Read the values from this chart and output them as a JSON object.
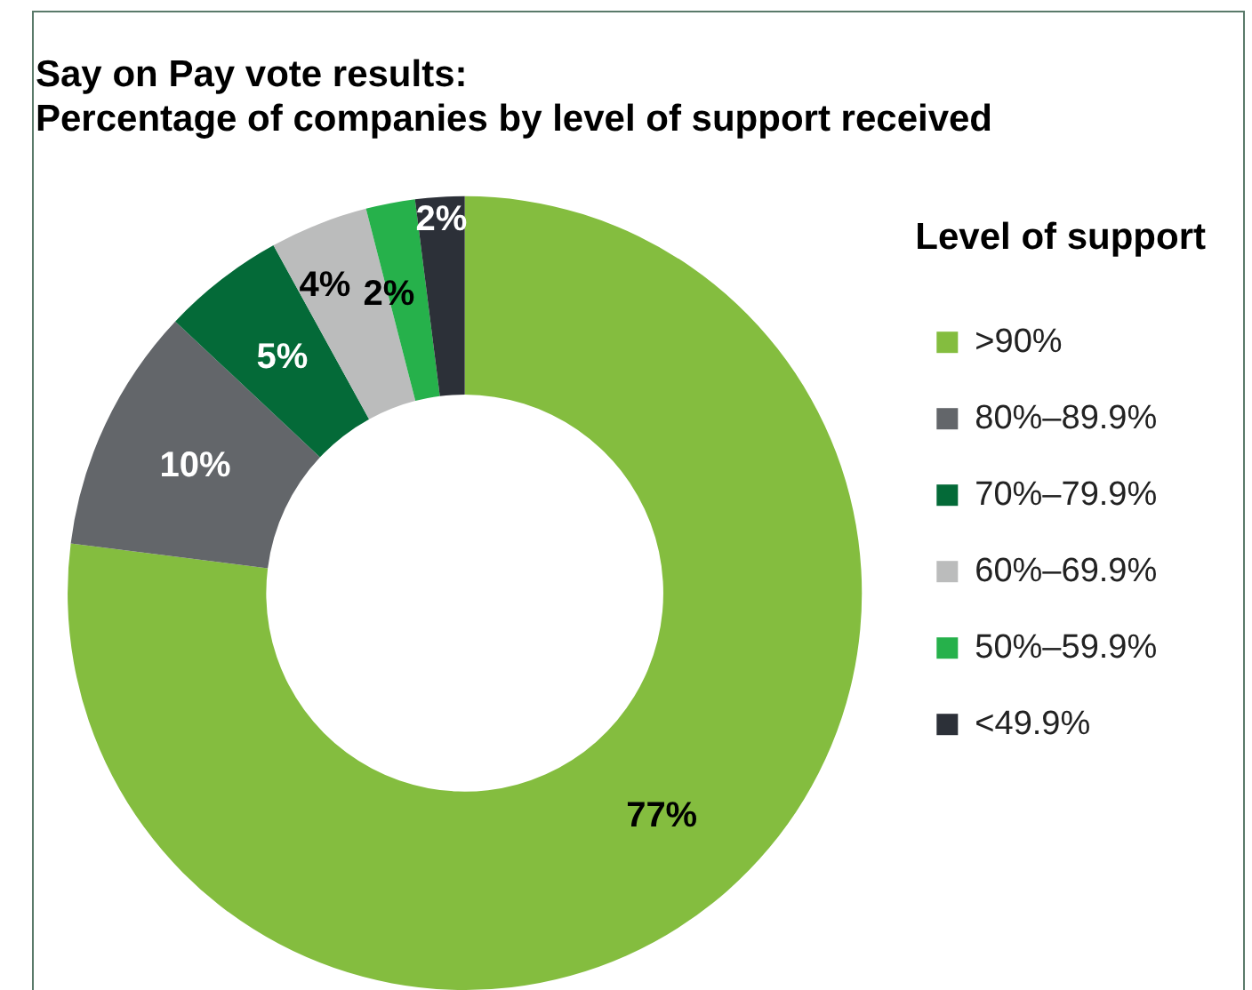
{
  "chart_data": {
    "type": "donut",
    "title": "Say on Pay vote results:\nPercentage of companies by level of support received",
    "legend_title": "Level of support",
    "categories": [
      ">90%",
      "80%–89.9%",
      "70%–79.9%",
      "60%–69.9%",
      "50%–59.9%",
      "<49.9%"
    ],
    "values": [
      77,
      10,
      5,
      4,
      2,
      2
    ],
    "colors": [
      "#84bd3f",
      "#63666a",
      "#046a38",
      "#bbbcbc",
      "#26b14b",
      "#2c3038"
    ],
    "value_labels": [
      "77%",
      "10%",
      "5%",
      "4%",
      "2%",
      "2%"
    ],
    "legend": "right"
  }
}
